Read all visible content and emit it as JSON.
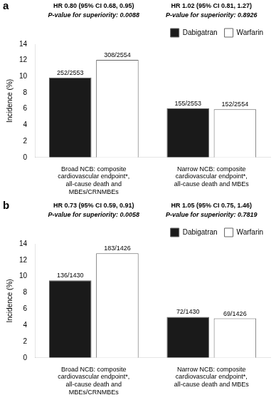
{
  "chart_data": [
    {
      "type": "bar",
      "title": "a",
      "annotations": [
        "HR 0.80 (95% CI 0.68, 0.95)",
        "P-value for superiority: 0.0088",
        "HR 1.02 (95% CI 0.81, 1.27)",
        "P-value for superiority: 0.8926"
      ],
      "categories": [
        "Broad NCB: composite\ncardiovascular endpoint*,\nall-cause death and\nMBEs/CRNMBEs",
        "Narrow NCB: composite\ncardiovascular endpoint*,\nall-cause death and MBEs"
      ],
      "series": [
        {
          "name": "Dabigatran",
          "color": "#1a1a1a",
          "values": [
            9.87,
            6.07
          ],
          "value_labels": [
            "252/2553",
            "155/2553"
          ]
        },
        {
          "name": "Warfarin",
          "color": "#ffffff",
          "values": [
            12.06,
            5.95
          ],
          "value_labels": [
            "308/2554",
            "152/2554"
          ]
        }
      ],
      "ylabel": "Incidence (%)",
      "ylim": [
        0,
        14
      ],
      "yticks": [
        0,
        2,
        4,
        6,
        8,
        10,
        12,
        14
      ],
      "grid": false,
      "legend": "upper right",
      "data_labels": true
    },
    {
      "type": "bar",
      "title": "b",
      "annotations": [
        "HR 0.73 (95% CI 0.59, 0.91)",
        "P-value for superiority: 0.0058",
        "HR 1.05 (95% CI 0.75, 1.46)",
        "P-value for superiority: 0.7819"
      ],
      "categories": [
        "Broad NCB: composite\ncardiovascular endpoint*,\nall-cause death and\nMBEs/CRNMBEs",
        "Narrow NCB: composite\ncardiovascular endpoint*,\nall-cause death and MBEs"
      ],
      "series": [
        {
          "name": "Dabigatran",
          "color": "#1a1a1a",
          "values": [
            9.51,
            5.03
          ],
          "value_labels": [
            "136/1430",
            "72/1430"
          ]
        },
        {
          "name": "Warfarin",
          "color": "#ffffff",
          "values": [
            12.83,
            4.84
          ],
          "value_labels": [
            "183/1426",
            "69/1426"
          ]
        }
      ],
      "ylabel": "Incidence (%)",
      "ylim": [
        0,
        14
      ],
      "yticks": [
        0,
        2,
        4,
        6,
        8,
        10,
        12,
        14
      ],
      "grid": false,
      "legend": "upper right",
      "data_labels": true
    }
  ]
}
